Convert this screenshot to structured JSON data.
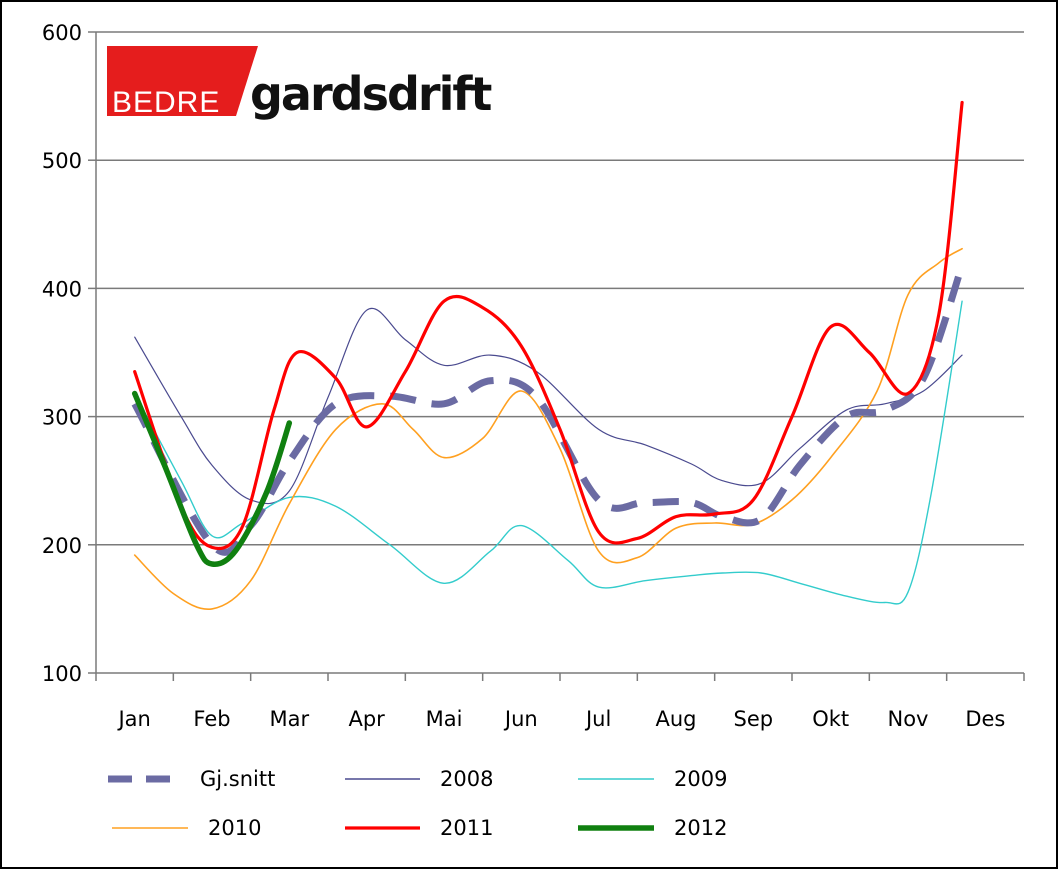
{
  "logo": {
    "part1": "BEDRE",
    "part2": "gardsdrift",
    "accent_color": "#e51d1d"
  },
  "chart_data": {
    "type": "line",
    "categories": [
      "Jan",
      "Feb",
      "Mar",
      "Apr",
      "Mai",
      "Jun",
      "Jul",
      "Aug",
      "Sep",
      "Okt",
      "Nov",
      "Des"
    ],
    "ylim": [
      100,
      600
    ],
    "yticks": [
      100,
      200,
      300,
      400,
      500,
      600
    ],
    "grid": true,
    "legend_position": "bottom",
    "series": [
      {
        "name": "Gj.snitt",
        "color": "#6b6ba3",
        "style": "dashed",
        "x": [
          0.0,
          1.0,
          1.5,
          2.0,
          2.6,
          3.3,
          4.0,
          4.6,
          5.2,
          6.0,
          6.6,
          7.2,
          7.6,
          8.1,
          8.6,
          9.2,
          9.7,
          10.2,
          10.7
        ],
        "values": [
          310,
          200,
          215,
          265,
          310,
          316,
          310,
          328,
          315,
          235,
          233,
          233,
          222,
          220,
          262,
          300,
          305,
          330,
          418
        ]
      },
      {
        "name": "2008",
        "color": "#4a4a8f",
        "style": "solid",
        "x": [
          0.0,
          0.6,
          1.0,
          1.5,
          2.0,
          2.5,
          3.0,
          3.5,
          4.0,
          4.6,
          5.2,
          6.0,
          6.6,
          7.2,
          7.6,
          8.1,
          8.6,
          9.2,
          9.7,
          10.2,
          10.7
        ],
        "values": [
          362,
          300,
          262,
          235,
          242,
          315,
          383,
          360,
          340,
          348,
          335,
          290,
          278,
          263,
          250,
          248,
          275,
          305,
          310,
          320,
          348
        ]
      },
      {
        "name": "2009",
        "color": "#33cccc",
        "style": "solid",
        "x": [
          0.0,
          0.6,
          1.0,
          1.4,
          2.0,
          2.6,
          3.3,
          4.0,
          4.6,
          5.0,
          5.6,
          6.0,
          6.6,
          7.2,
          7.6,
          8.1,
          8.6,
          9.2,
          9.7,
          10.0,
          10.3,
          10.7
        ],
        "values": [
          318,
          250,
          207,
          217,
          237,
          230,
          200,
          170,
          195,
          215,
          188,
          167,
          172,
          176,
          178,
          178,
          170,
          160,
          155,
          163,
          240,
          390
        ]
      },
      {
        "name": "2010",
        "color": "#ffa020",
        "style": "solid",
        "x": [
          0.0,
          0.5,
          1.0,
          1.5,
          2.0,
          2.6,
          3.2,
          3.6,
          4.0,
          4.5,
          5.0,
          5.5,
          6.0,
          6.5,
          7.0,
          7.5,
          8.0,
          8.5,
          9.0,
          9.6,
          10.0,
          10.4,
          10.7
        ],
        "values": [
          192,
          162,
          150,
          172,
          232,
          290,
          310,
          290,
          268,
          283,
          320,
          275,
          195,
          190,
          213,
          217,
          216,
          235,
          268,
          320,
          395,
          420,
          431
        ]
      },
      {
        "name": "2011",
        "color": "#ff0000",
        "style": "solid",
        "x": [
          0.0,
          0.6,
          1.0,
          1.4,
          1.8,
          2.1,
          2.6,
          3.0,
          3.5,
          4.0,
          4.5,
          5.0,
          5.5,
          6.0,
          6.5,
          7.0,
          7.5,
          8.0,
          8.5,
          9.0,
          9.5,
          10.0,
          10.4,
          10.7
        ],
        "values": [
          335,
          230,
          198,
          215,
          305,
          350,
          330,
          292,
          335,
          390,
          385,
          355,
          290,
          210,
          205,
          222,
          224,
          235,
          300,
          370,
          350,
          318,
          380,
          545
        ]
      },
      {
        "name": "2012",
        "color": "#108010",
        "style": "solid",
        "x": [
          0.0,
          0.4,
          0.8,
          1.0,
          1.3,
          1.7,
          2.0
        ],
        "values": [
          318,
          260,
          200,
          185,
          195,
          240,
          295
        ]
      }
    ]
  }
}
